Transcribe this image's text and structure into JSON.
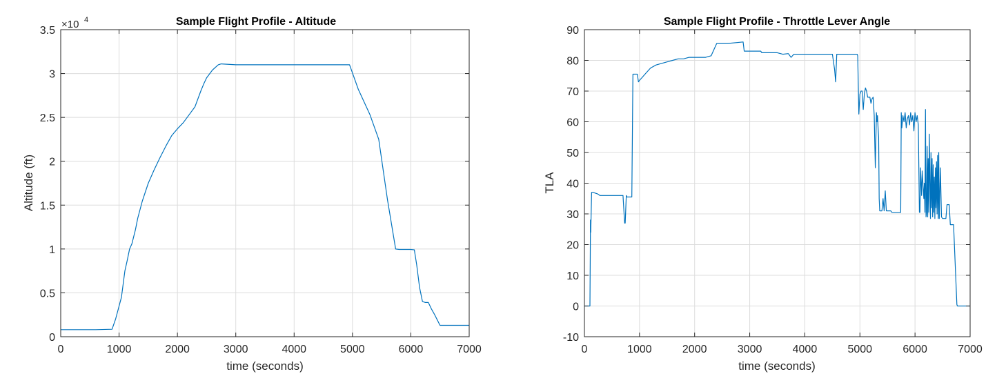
{
  "accent_color": "#0072BD",
  "chart_data": [
    {
      "type": "line",
      "title": "Sample Flight Profile - Altitude",
      "xlabel": "time (seconds)",
      "ylabel": "Altitude (ft)",
      "xlim": [
        0,
        7000
      ],
      "ylim": [
        0,
        35000
      ],
      "grid": true,
      "y_exponent_label": "×10",
      "y_exponent_power": "4",
      "x_ticks": [
        {
          "value": 0,
          "label": "0"
        },
        {
          "value": 1000,
          "label": "1000"
        },
        {
          "value": 2000,
          "label": "2000"
        },
        {
          "value": 3000,
          "label": "3000"
        },
        {
          "value": 4000,
          "label": "4000"
        },
        {
          "value": 5000,
          "label": "5000"
        },
        {
          "value": 6000,
          "label": "6000"
        },
        {
          "value": 7000,
          "label": "7000"
        }
      ],
      "y_ticks": [
        {
          "value": 0,
          "label": "0"
        },
        {
          "value": 5000,
          "label": "0.5"
        },
        {
          "value": 10000,
          "label": "1"
        },
        {
          "value": 15000,
          "label": "1.5"
        },
        {
          "value": 20000,
          "label": "2"
        },
        {
          "value": 25000,
          "label": "2.5"
        },
        {
          "value": 30000,
          "label": "3"
        },
        {
          "value": 35000,
          "label": "3.5"
        }
      ],
      "series": [
        {
          "color": "#0072BD",
          "x": [
            0,
            300,
            600,
            880,
            940,
            980,
            1040,
            1100,
            1140,
            1180,
            1220,
            1280,
            1320,
            1400,
            1500,
            1600,
            1700,
            1800,
            1900,
            2000,
            2100,
            2200,
            2300,
            2400,
            2450,
            2500,
            2600,
            2700,
            2750,
            3000,
            3500,
            4000,
            4500,
            4950,
            5100,
            5300,
            5450,
            5600,
            5740,
            5800,
            6000,
            6060,
            6100,
            6150,
            6200,
            6250,
            6300,
            6350,
            6400,
            6500,
            6600,
            6800,
            7000
          ],
          "y": [
            800,
            800,
            800,
            850,
            2000,
            3000,
            4500,
            7500,
            8700,
            10000,
            10600,
            12200,
            13500,
            15500,
            17500,
            19000,
            20400,
            21700,
            22900,
            23700,
            24400,
            25300,
            26200,
            28000,
            28800,
            29500,
            30400,
            31000,
            31100,
            31000,
            31000,
            31000,
            31000,
            31000,
            28200,
            25300,
            22500,
            15600,
            10000,
            9950,
            9950,
            9900,
            8200,
            5600,
            4000,
            3900,
            3900,
            3200,
            2600,
            1300,
            1300,
            1300,
            1300
          ]
        }
      ]
    },
    {
      "type": "line",
      "title": "Sample Flight Profile - Throttle Lever Angle",
      "xlabel": "time (seconds)",
      "ylabel": "TLA",
      "xlim": [
        0,
        7000
      ],
      "ylim": [
        -10,
        90
      ],
      "grid": true,
      "x_ticks": [
        {
          "value": 0,
          "label": "0"
        },
        {
          "value": 1000,
          "label": "1000"
        },
        {
          "value": 2000,
          "label": "2000"
        },
        {
          "value": 3000,
          "label": "3000"
        },
        {
          "value": 4000,
          "label": "4000"
        },
        {
          "value": 5000,
          "label": "5000"
        },
        {
          "value": 6000,
          "label": "6000"
        },
        {
          "value": 7000,
          "label": "7000"
        }
      ],
      "y_ticks": [
        {
          "value": -10,
          "label": "-10"
        },
        {
          "value": 0,
          "label": "0"
        },
        {
          "value": 10,
          "label": "10"
        },
        {
          "value": 20,
          "label": "20"
        },
        {
          "value": 30,
          "label": "30"
        },
        {
          "value": 40,
          "label": "40"
        },
        {
          "value": 50,
          "label": "50"
        },
        {
          "value": 60,
          "label": "60"
        },
        {
          "value": 70,
          "label": "70"
        },
        {
          "value": 80,
          "label": "80"
        },
        {
          "value": 90,
          "label": "90"
        }
      ],
      "series": [
        {
          "color": "#0072BD",
          "x": [
            0,
            80,
            100,
            110,
            115,
            130,
            140,
            150,
            160,
            240,
            280,
            300,
            700,
            730,
            740,
            760,
            770,
            780,
            790,
            860,
            880,
            960,
            980,
            1000,
            1050,
            1100,
            1200,
            1300,
            1400,
            1500,
            1600,
            1700,
            1800,
            1900,
            2000,
            2100,
            2200,
            2300,
            2400,
            2410,
            2600,
            2880,
            2900,
            3200,
            3220,
            3500,
            3600,
            3700,
            3750,
            3800,
            4200,
            4500,
            4540,
            4560,
            4580,
            4600,
            4900,
            4950,
            4960,
            4980,
            5000,
            5020,
            5040,
            5060,
            5080,
            5100,
            5120,
            5140,
            5160,
            5180,
            5200,
            5220,
            5240,
            5260,
            5280,
            5300,
            5310,
            5320,
            5330,
            5340,
            5350,
            5360,
            5380,
            5400,
            5420,
            5440,
            5460,
            5480,
            5500,
            5520,
            5540,
            5560,
            5580,
            5600,
            5700,
            5740,
            5750,
            5760,
            5780,
            5800,
            5820,
            5840,
            5860,
            5880,
            5900,
            5920,
            5940,
            5960,
            5980,
            6000,
            6020,
            6040,
            6060,
            6080,
            6090,
            6100,
            6110,
            6120,
            6130,
            6150,
            6160,
            6170,
            6180,
            6190,
            6200,
            6210,
            6220,
            6230,
            6240,
            6250,
            6260,
            6270,
            6280,
            6290,
            6300,
            6310,
            6320,
            6330,
            6340,
            6350,
            6360,
            6370,
            6380,
            6390,
            6400,
            6410,
            6420,
            6430,
            6440,
            6460,
            6480,
            6500,
            6520,
            6540,
            6560,
            6580,
            6600,
            6620,
            6640,
            6660,
            6680,
            6700,
            6760,
            6770,
            6800,
            7000
          ],
          "y": [
            0,
            0,
            0,
            28,
            24,
            37,
            37,
            37,
            37,
            36.5,
            36,
            36,
            36,
            27,
            27,
            36,
            35.5,
            35.5,
            35.5,
            35.5,
            75.5,
            75.5,
            73,
            73.5,
            74.5,
            75.5,
            77.5,
            78.5,
            79,
            79.5,
            80,
            80.5,
            80.5,
            81,
            81,
            81,
            81,
            81.5,
            85.5,
            85.5,
            85.5,
            86,
            83,
            83,
            82.5,
            82.5,
            82,
            82.2,
            81,
            82,
            82,
            82,
            77,
            73,
            82,
            82,
            82,
            82,
            81.5,
            62.5,
            69,
            70,
            70,
            64,
            69,
            71,
            70,
            68,
            68,
            68,
            66,
            67.5,
            68,
            62,
            45,
            63,
            60,
            62,
            58,
            55,
            35,
            31,
            31,
            31,
            35,
            31,
            37.5,
            31,
            31,
            31,
            31,
            31,
            30.5,
            30.5,
            30.5,
            30.5,
            63,
            58,
            62,
            60,
            63,
            58,
            61,
            62,
            59,
            63,
            60,
            62,
            57,
            63,
            60,
            62,
            59,
            30.5,
            30.5,
            45,
            40,
            36,
            44,
            38,
            35,
            40,
            30.5,
            64,
            29,
            30.5,
            52,
            29,
            48,
            30.5,
            56,
            40,
            28.5,
            50,
            32,
            48,
            29,
            46,
            30.5,
            42,
            28.5,
            45,
            32,
            47,
            30,
            49,
            28.5,
            50,
            28.5,
            45,
            29,
            28.5,
            28.5,
            28.5,
            28.5,
            33,
            33,
            33,
            26.5,
            26.5,
            26.5,
            26.5,
            0.5,
            0,
            0,
            0
          ]
        }
      ]
    }
  ]
}
